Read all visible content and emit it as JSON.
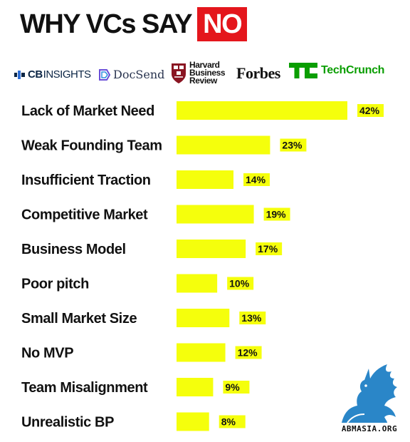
{
  "header": {
    "title_main": "WHY VCs SAY",
    "title_highlight": "NO"
  },
  "sources": {
    "cbinsights": {
      "prefix": "CB",
      "suffix": "INSIGHTS"
    },
    "docsend": "DocSend",
    "hbr": [
      "Harvard",
      "Business",
      "Review"
    ],
    "forbes": "Forbes",
    "techcrunch": "TechCrunch"
  },
  "colors": {
    "bar": "#f5ff0c",
    "title_highlight": "#e4161c",
    "text": "#111111",
    "techcrunch": "#0a9e01",
    "watermark": "#2a86c8"
  },
  "chart_data": {
    "type": "bar",
    "orientation": "horizontal",
    "title": "WHY VCs SAY NO",
    "categories": [
      "Lack of Market Need",
      "Weak Founding Team",
      "Insufficient Traction",
      "Competitive Market",
      "Business Model",
      "Poor pitch",
      "Small Market Size",
      "No MVP",
      "Team Misalignment",
      "Unrealistic BP"
    ],
    "values": [
      42,
      23,
      14,
      19,
      17,
      10,
      13,
      12,
      9,
      8
    ],
    "value_labels": [
      "42%",
      "23%",
      "14%",
      "19%",
      "17%",
      "10%",
      "13%",
      "12%",
      "9%",
      "8%"
    ],
    "xlabel": "",
    "ylabel": "",
    "unit": "%",
    "grid": false,
    "legend": "none"
  },
  "watermark": {
    "text": "ABMASIA.ORG",
    "icon": "griffin-icon"
  }
}
